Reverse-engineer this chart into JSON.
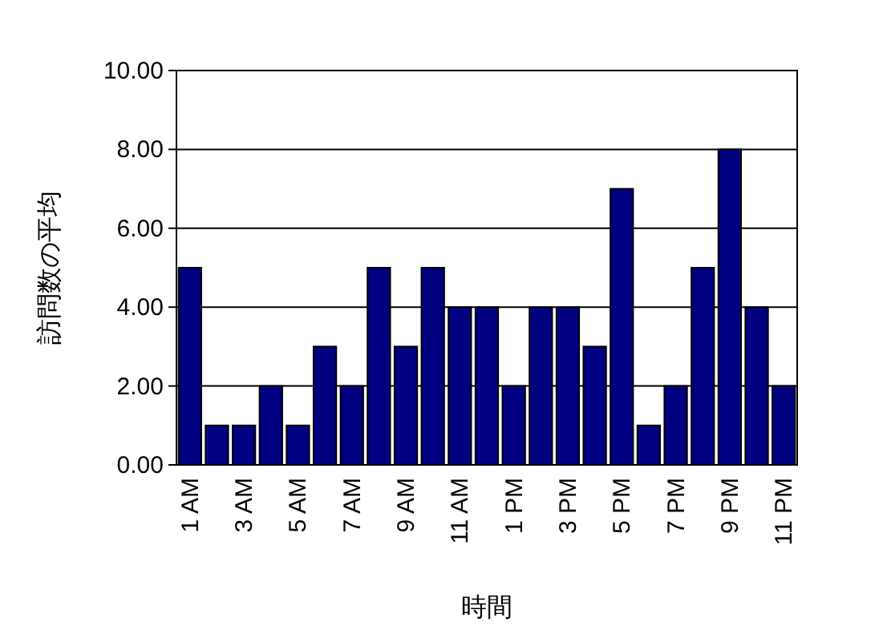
{
  "chart_data": {
    "type": "bar",
    "xlabel": "時間",
    "ylabel": "訪問数の平均",
    "categories": [
      "1 AM",
      null,
      "3 AM",
      null,
      "5 AM",
      null,
      "7 AM",
      null,
      "9 AM",
      null,
      "11 AM",
      null,
      "1 PM",
      null,
      "3 PM",
      null,
      "5 PM",
      null,
      "7 PM",
      null,
      "9 PM",
      null,
      "11 PM"
    ],
    "values": [
      5,
      1,
      1,
      2,
      1,
      3,
      2,
      5,
      3,
      5,
      4,
      4,
      2,
      4,
      4,
      3,
      7,
      1,
      2,
      5,
      8,
      4,
      2
    ],
    "color": "#000080",
    "ylim": [
      0,
      10
    ],
    "yticks": [
      {
        "value": 0,
        "label": "0.00"
      },
      {
        "value": 2,
        "label": "2.00"
      },
      {
        "value": 4,
        "label": "4.00"
      },
      {
        "value": 6,
        "label": "6.00"
      },
      {
        "value": 8,
        "label": "8.00"
      },
      {
        "value": 10,
        "label": "10.00"
      }
    ],
    "grid": "y"
  }
}
